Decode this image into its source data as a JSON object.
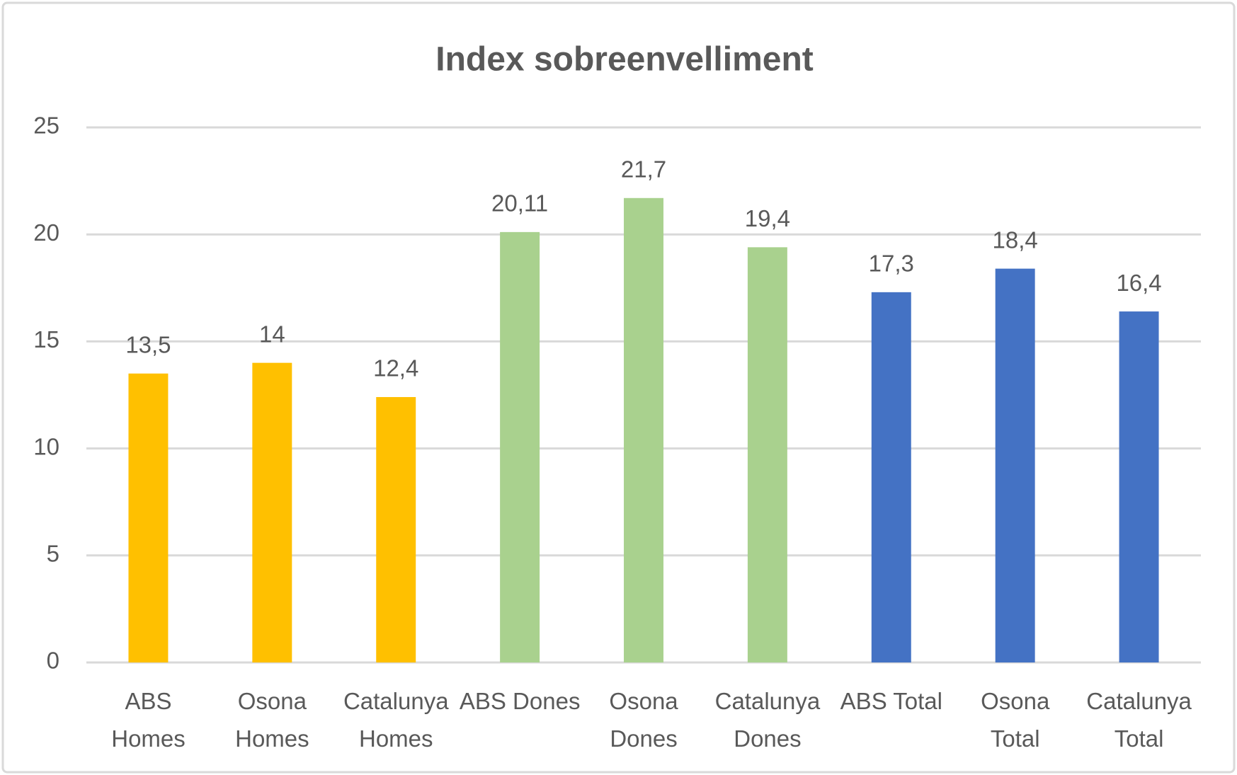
{
  "chart_data": {
    "type": "bar",
    "title": "Index sobreenvelliment",
    "categories": [
      "ABS\nHomes",
      "Osona\nHomes",
      "Catalunya\nHomes",
      "ABS Dones",
      "Osona\nDones",
      "Catalunya\nDones",
      "ABS Total",
      "Osona\nTotal",
      "Catalunya\nTotal"
    ],
    "values": [
      13.5,
      14,
      12.4,
      20.11,
      21.7,
      19.4,
      17.3,
      18.4,
      16.4
    ],
    "value_labels": [
      "13,5",
      "14",
      "12,4",
      "20,11",
      "21,7",
      "19,4",
      "17,3",
      "18,4",
      "16,4"
    ],
    "colors": [
      "#FFC000",
      "#FFC000",
      "#FFC000",
      "#A9D18E",
      "#A9D18E",
      "#A9D18E",
      "#4472C4",
      "#4472C4",
      "#4472C4"
    ],
    "ylim": [
      0,
      25
    ],
    "yticks": [
      0,
      5,
      10,
      15,
      20,
      25
    ],
    "grid": true
  }
}
